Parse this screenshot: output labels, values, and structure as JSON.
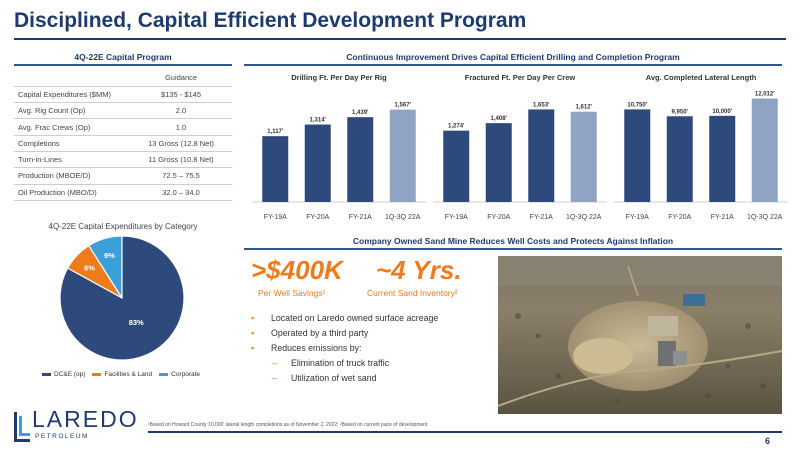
{
  "title": "Disciplined, Capital Efficient Development Program",
  "capital_program": {
    "heading": "4Q-22E Capital Program",
    "column_header": "Guidance",
    "rows": [
      {
        "label": "Capital Expenditures ($MM)",
        "value": "$135 - $145"
      },
      {
        "label": "Avg. Rig Count (Op)",
        "value": "2.0"
      },
      {
        "label": "Avg. Frac Crews (Op)",
        "value": "1.0"
      },
      {
        "label": "Completions",
        "value": "13 Gross (12.8 Net)"
      },
      {
        "label": "Turn-in-Lines",
        "value": "11 Gross (10.8 Net)"
      },
      {
        "label": "Production (MBOE/D)",
        "value": "72.5 – 75.5"
      },
      {
        "label": "Oil Production (MBO/D)",
        "value": "32.0 – 34.0"
      }
    ]
  },
  "pie": {
    "title": "4Q-22E Capital Expenditures by Category",
    "legend": [
      {
        "label": "DC&E (op)",
        "color": "#2e4a7d"
      },
      {
        "label": "Facilities & Land",
        "color": "#f07b1a"
      },
      {
        "label": "Corporate",
        "color": "#3d9fd8"
      }
    ]
  },
  "drilling_section": {
    "heading": "Continuous Improvement Drives Capital Efficient Drilling and Completion Program"
  },
  "sand_section": {
    "heading": "Company Owned Sand Mine Reduces Well Costs and Protects Against Inflation",
    "stat1_value": ">$400K",
    "stat1_label": "Per Well Savings¹",
    "stat2_value": "~4 Yrs.",
    "stat2_label": "Current Sand Inventory²",
    "bullets": [
      {
        "text": "Located on Laredo owned surface acreage",
        "level": 1
      },
      {
        "text": "Operated by a third party",
        "level": 1
      },
      {
        "text": "Reduces emissions by:",
        "level": 1
      },
      {
        "text": "Elimination of truck traffic",
        "level": 2
      },
      {
        "text": "Utilization of wet sand",
        "level": 2
      }
    ]
  },
  "logo": {
    "name": "LAREDO",
    "sub": "PETROLEUM"
  },
  "footnote": "¹Based on Howard County 10,000' lateral length completions as of November 2, 2022; ²Based on current pace of development",
  "page_number": "6",
  "chart_data": [
    {
      "type": "pie",
      "title": "4Q-22E Capital Expenditures by Category",
      "categories": [
        "DC&E (op)",
        "Facilities & Land",
        "Corporate"
      ],
      "values": [
        83,
        8,
        9
      ],
      "value_labels": [
        "83%",
        "8%",
        "9%"
      ],
      "colors": [
        "#2e4a7d",
        "#f07b1a",
        "#3d9fd8"
      ],
      "legend": "bottom"
    },
    {
      "type": "bar",
      "title": "Drilling Ft. Per Day Per Rig",
      "categories": [
        "FY-19A",
        "FY-20A",
        "FY-21A",
        "1Q-3Q 22A"
      ],
      "values": [
        1117,
        1314,
        1439,
        1567
      ],
      "value_labels": [
        "1,117'",
        "1,314'",
        "1,439'",
        "1,567'"
      ],
      "ylim": [
        0,
        1900
      ]
    },
    {
      "type": "bar",
      "title": "Fractured Ft. Per Day Per Crew",
      "categories": [
        "FY-19A",
        "FY-20A",
        "FY-21A",
        "1Q-3Q 22A"
      ],
      "values": [
        1274,
        1408,
        1653,
        1612
      ],
      "value_labels": [
        "1,274'",
        "1,408'",
        "1,653'",
        "1,612'"
      ],
      "ylim": [
        0,
        2000
      ]
    },
    {
      "type": "bar",
      "title": "Avg. Completed Lateral Length",
      "categories": [
        "FY-19A",
        "FY-20A",
        "FY-21A",
        "1Q-3Q 22A"
      ],
      "values": [
        10750,
        9950,
        10000,
        12012
      ],
      "value_labels": [
        "10,750'",
        "9,950'",
        "10,000'",
        "12,012'"
      ],
      "ylim": [
        0,
        13000
      ]
    }
  ]
}
